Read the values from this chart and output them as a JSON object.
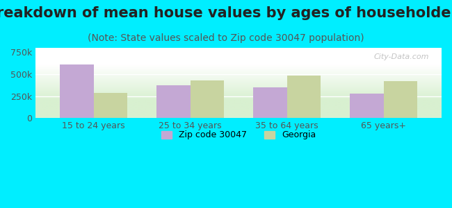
{
  "title": "Breakdown of mean house values by ages of householders",
  "subtitle": "(Note: State values scaled to Zip code 30047 population)",
  "categories": [
    "15 to 24 years",
    "25 to 34 years",
    "35 to 64 years",
    "65 years+"
  ],
  "zip_values": [
    610000,
    375000,
    350000,
    280000
  ],
  "georgia_values": [
    285000,
    430000,
    480000,
    420000
  ],
  "zip_color": "#c4a8d4",
  "georgia_color": "#c8d4a0",
  "background_color": "#00eeff",
  "plot_bg_top": "#ffffff",
  "plot_bg_bottom": "#d8f0d0",
  "ylim": [
    0,
    800000
  ],
  "yticks": [
    0,
    250000,
    500000,
    750000
  ],
  "ytick_labels": [
    "0",
    "250k",
    "500k",
    "750k"
  ],
  "legend_zip_label": "Zip code 30047",
  "legend_georgia_label": "Georgia",
  "bar_width": 0.35,
  "title_fontsize": 15,
  "subtitle_fontsize": 10,
  "tick_fontsize": 9,
  "legend_fontsize": 9
}
